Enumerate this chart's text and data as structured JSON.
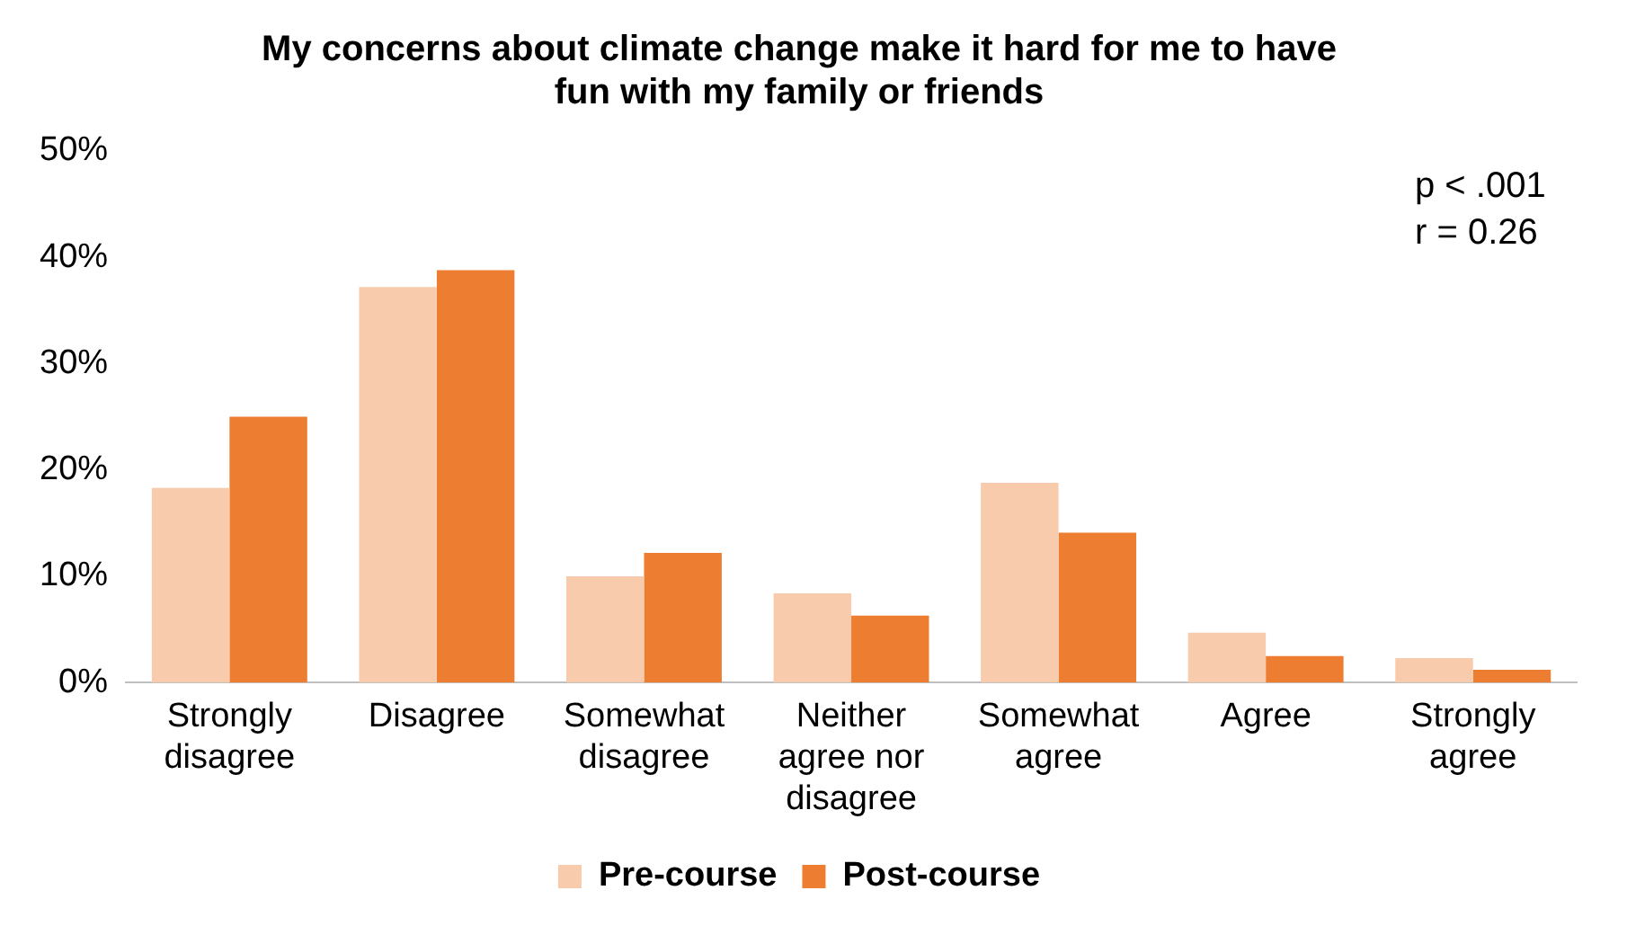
{
  "chart_data": {
    "type": "bar",
    "title": "My concerns about climate change make it hard for me to have fun with my family or friends",
    "categories": [
      "Strongly disagree",
      "Disagree",
      "Somewhat disagree",
      "Neither agree nor disagree",
      "Somewhat agree",
      "Agree",
      "Strongly agree"
    ],
    "series": [
      {
        "name": "Pre-course",
        "color": "#f8cbad",
        "values": [
          18.3,
          37.2,
          10.0,
          8.4,
          18.8,
          4.7,
          2.3
        ]
      },
      {
        "name": "Post-course",
        "color": "#ed7d31",
        "values": [
          25.0,
          38.8,
          12.2,
          6.3,
          14.1,
          2.5,
          1.2
        ]
      }
    ],
    "ylim": [
      0,
      50
    ],
    "yticks": [
      {
        "value": 0,
        "label": "0%"
      },
      {
        "value": 10,
        "label": "10%"
      },
      {
        "value": 20,
        "label": "20%"
      },
      {
        "value": 30,
        "label": "30%"
      },
      {
        "value": 40,
        "label": "40%"
      },
      {
        "value": 50,
        "label": "50%"
      }
    ],
    "grid": false,
    "legend": "bottom",
    "annotations": [
      "p < .001",
      "r = 0.26"
    ]
  }
}
